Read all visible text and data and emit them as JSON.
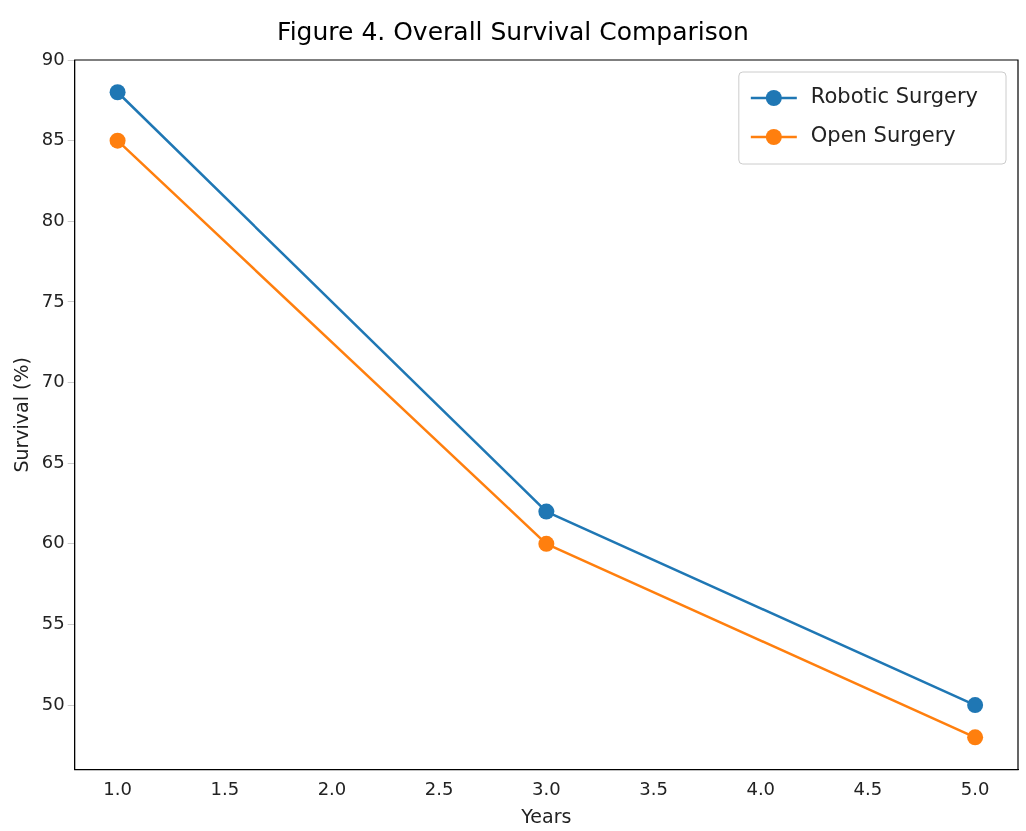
{
  "chart_data": {
    "type": "line",
    "title": "Figure 4. Overall Survival Comparison",
    "xlabel": "Years",
    "ylabel": "Survival (%)",
    "x": [
      1,
      3,
      5
    ],
    "series": [
      {
        "name": "Robotic Surgery",
        "color": "#1f77b4",
        "values": [
          88,
          62,
          50
        ]
      },
      {
        "name": "Open Surgery",
        "color": "#ff7f0e",
        "values": [
          85,
          60,
          48
        ]
      }
    ],
    "xlim": [
      0.8,
      5.2
    ],
    "xticks": [
      {
        "value": 1,
        "label": "1.0"
      },
      {
        "value": 1.5,
        "label": "1.5"
      },
      {
        "value": 2,
        "label": "2.0"
      },
      {
        "value": 2.5,
        "label": "2.5"
      },
      {
        "value": 3,
        "label": "3.0"
      },
      {
        "value": 3.5,
        "label": "3.5"
      },
      {
        "value": 4,
        "label": "4.0"
      },
      {
        "value": 4.5,
        "label": "4.5"
      },
      {
        "value": 5,
        "label": "5.0"
      }
    ],
    "ylim": [
      46,
      90
    ],
    "yticks": [
      50,
      55,
      60,
      65,
      70,
      75,
      80,
      85,
      90
    ],
    "grid": false,
    "legend": "top right",
    "marker": "circle",
    "line_style": "solid"
  }
}
